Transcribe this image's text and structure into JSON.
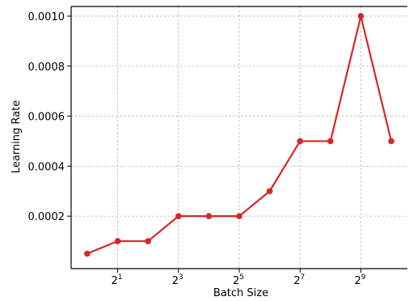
{
  "chart_data": {
    "type": "line",
    "xlabel": "Batch Size",
    "ylabel": "Learning Rate",
    "xscale": "log2",
    "grid": true,
    "line_color": "#d62728",
    "x": [
      1,
      2,
      4,
      8,
      16,
      32,
      64,
      128,
      256,
      512,
      1024
    ],
    "x_ticks": [
      {
        "value": 2,
        "base": "2",
        "exp": "1"
      },
      {
        "value": 8,
        "base": "2",
        "exp": "3"
      },
      {
        "value": 32,
        "base": "2",
        "exp": "5"
      },
      {
        "value": 128,
        "base": "2",
        "exp": "7"
      },
      {
        "value": 512,
        "base": "2",
        "exp": "9"
      }
    ],
    "y_ticks": [
      "0.0002",
      "0.0004",
      "0.0006",
      "0.0008",
      "0.0010"
    ],
    "series": [
      {
        "values": [
          5e-05,
          0.0001,
          0.0001,
          0.0002,
          0.0002,
          0.0002,
          0.0003,
          0.0005,
          0.0005,
          0.001,
          0.0005
        ]
      }
    ]
  }
}
